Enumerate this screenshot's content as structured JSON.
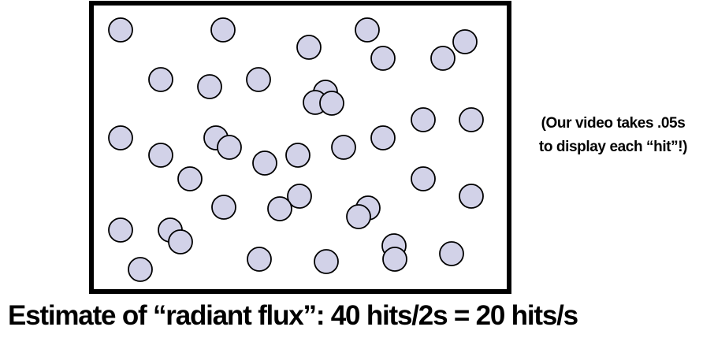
{
  "diagram": {
    "colors": {
      "frame": "#000000",
      "hit_fill": "#d2d2e8",
      "hit_stroke": "#000000"
    },
    "hit_count_shown": 42
  },
  "note": {
    "line1": "(Our video takes .05s",
    "line2": "to display each “hit”!)"
  },
  "caption": {
    "text": "Estimate of “radiant flux”: 40 hits/2s = 20 hits/s"
  }
}
